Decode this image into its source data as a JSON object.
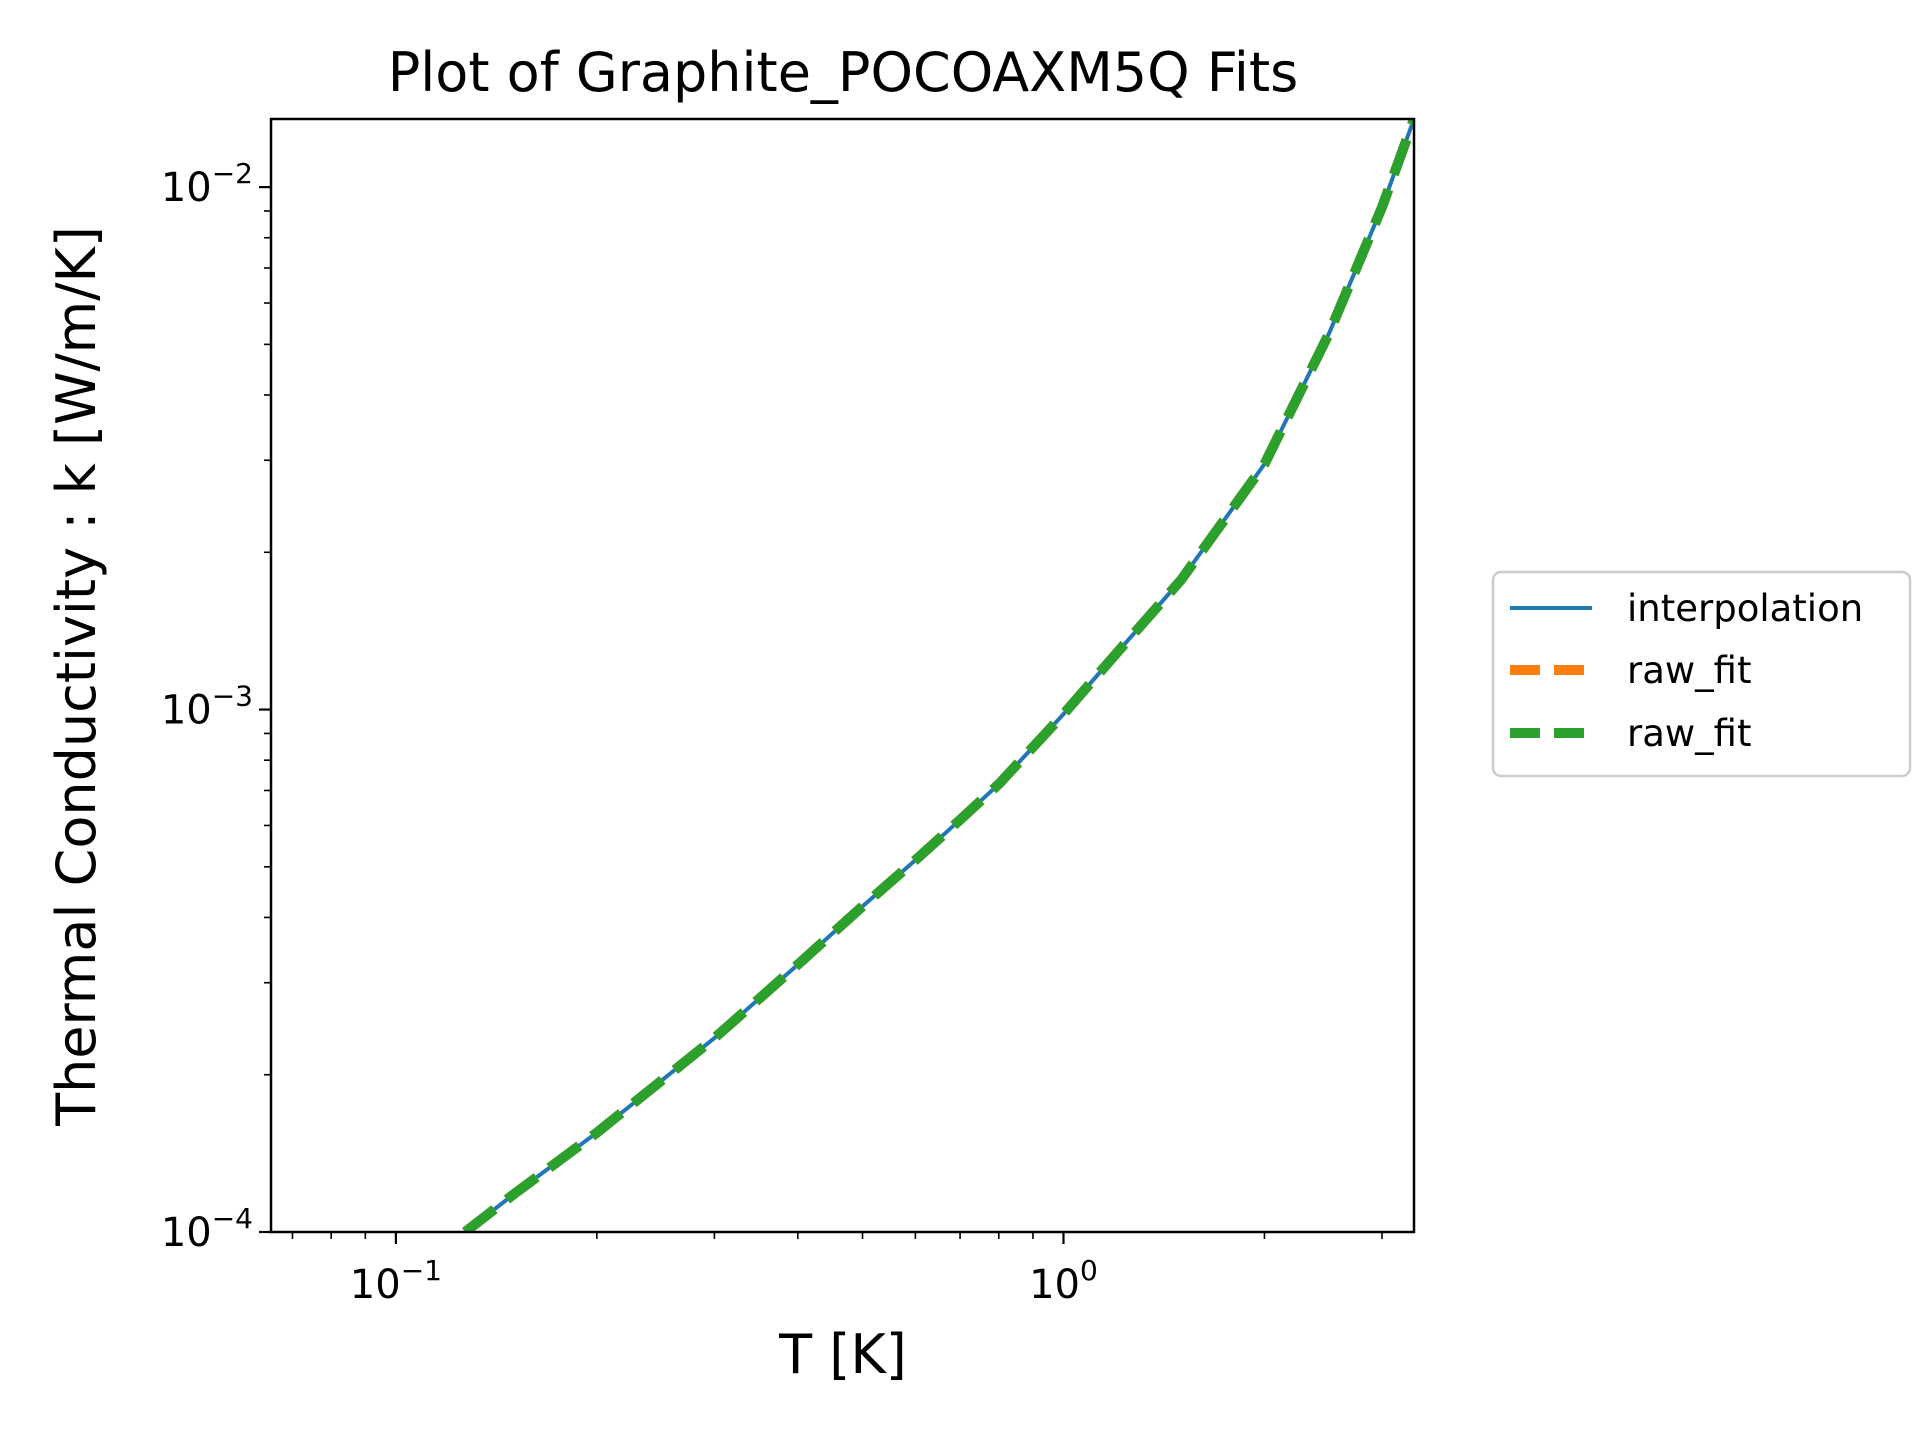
{
  "chart_data": {
    "type": "line",
    "title": "Plot of Graphite_POCOAXM5Q Fits",
    "xlabel": "T [K]",
    "ylabel": "Thermal Conductivity : k [W/m/K]",
    "xscale": "log",
    "yscale": "log",
    "xlim": [
      0.065,
      3.35
    ],
    "ylim": [
      0.0001,
      0.0135
    ],
    "xticks": [
      {
        "value": 0.1,
        "base": "10",
        "exp": "−1"
      },
      {
        "value": 1,
        "base": "10",
        "exp": "0"
      }
    ],
    "yticks": [
      {
        "value": 0.0001,
        "base": "10",
        "exp": "−4"
      },
      {
        "value": 0.001,
        "base": "10",
        "exp": "−3"
      },
      {
        "value": 0.01,
        "base": "10",
        "exp": "−2"
      }
    ],
    "grid": false,
    "legend_position": "outside right",
    "series": [
      {
        "name": "interpolation",
        "color": "#1f77b4",
        "style": "solid",
        "x": [
          0.127,
          0.15,
          0.2,
          0.3,
          0.4,
          0.5,
          0.6,
          0.7,
          0.8,
          1.0,
          1.2,
          1.5,
          2.0,
          2.5,
          3.0,
          3.35
        ],
        "y": [
          0.0001,
          0.000118,
          0.000155,
          0.000235,
          0.000325,
          0.00042,
          0.000515,
          0.000615,
          0.00072,
          0.00098,
          0.00128,
          0.00177,
          0.00295,
          0.00525,
          0.00915,
          0.0135
        ]
      },
      {
        "name": "raw_fit",
        "color": "#ff7f0e",
        "style": "dashed",
        "x": [
          0.127,
          0.15,
          0.2,
          0.3,
          0.4,
          0.5,
          0.6,
          0.7,
          0.8,
          1.0,
          1.2,
          1.5,
          2.0,
          2.5,
          3.0,
          3.35
        ],
        "y": [
          0.0001,
          0.000118,
          0.000155,
          0.000235,
          0.000325,
          0.00042,
          0.000515,
          0.000615,
          0.00072,
          0.00098,
          0.00128,
          0.00177,
          0.00295,
          0.00525,
          0.00915,
          0.0135
        ]
      },
      {
        "name": "raw_fit",
        "color": "#2ca02c",
        "style": "dashed",
        "x": [
          0.127,
          0.15,
          0.2,
          0.3,
          0.4,
          0.5,
          0.6,
          0.7,
          0.8,
          1.0,
          1.2,
          1.5,
          2.0,
          2.5,
          3.0,
          3.35
        ],
        "y": [
          0.0001,
          0.000118,
          0.000155,
          0.000235,
          0.000325,
          0.00042,
          0.000515,
          0.000615,
          0.00072,
          0.00098,
          0.00128,
          0.00177,
          0.00295,
          0.00525,
          0.00915,
          0.0135
        ]
      }
    ]
  }
}
